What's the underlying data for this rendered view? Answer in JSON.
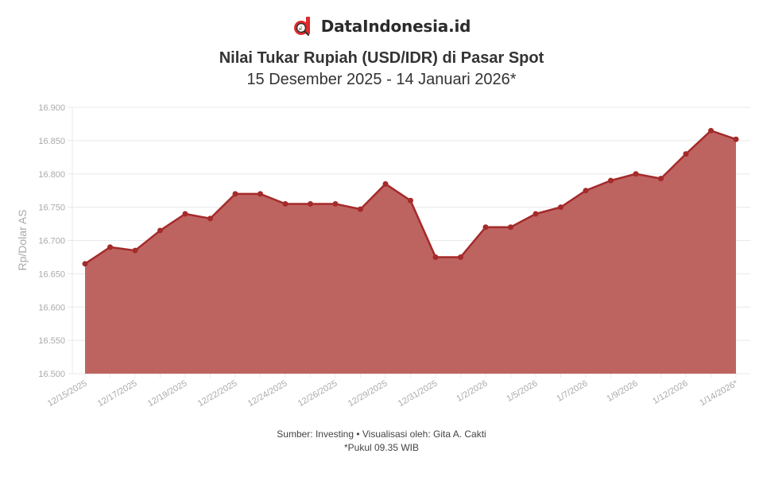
{
  "header": {
    "brand": "DataIndonesia.id",
    "logo_icon": "dataindonesia-logo-icon"
  },
  "chart_data": {
    "type": "area",
    "title": "Nilai Tukar Rupiah (USD/IDR) di Pasar Spot",
    "subtitle": "15 Desember 2025 - 14 Januari 2026*",
    "xlabel": "",
    "ylabel": "Rp/Dolar AS",
    "ylim": [
      16500,
      16900
    ],
    "yticks": [
      "16.500",
      "16.550",
      "16.600",
      "16.650",
      "16.700",
      "16.750",
      "16.800",
      "16.850",
      "16.900"
    ],
    "ytick_values": [
      16500,
      16550,
      16600,
      16650,
      16700,
      16750,
      16800,
      16850,
      16900
    ],
    "grid": true,
    "legend": "none",
    "x_tick_labels": [
      "12/15/2025",
      "12/17/2025",
      "12/19/2025",
      "12/22/2025",
      "12/24/2025",
      "12/26/2025",
      "12/29/2025",
      "12/31/2025",
      "1/2/2026",
      "1/5/2026",
      "1/7/2026",
      "1/9/2026",
      "1/12/2026",
      "1/14/2026*"
    ],
    "x": [
      "12/15/2025",
      "12/16/2025",
      "12/17/2025",
      "12/18/2025",
      "12/19/2025",
      "12/21/2025",
      "12/22/2025",
      "12/23/2025",
      "12/24/2025",
      "12/25/2025",
      "12/26/2025",
      "12/28/2025",
      "12/29/2025",
      "12/30/2025",
      "12/31/2025",
      "1/1/2026",
      "1/2/2026",
      "1/4/2026",
      "1/5/2026",
      "1/6/2026",
      "1/7/2026",
      "1/8/2026",
      "1/9/2026",
      "1/11/2026",
      "1/12/2026",
      "1/13/2026",
      "1/14/2026*"
    ],
    "series": [
      {
        "name": "USD/IDR",
        "color": "#a52a2a",
        "fill": "#bd6461",
        "values": [
          16665,
          16690,
          16685,
          16715,
          16740,
          16733,
          16770,
          16770,
          16755,
          16755,
          16755,
          16747,
          16785,
          16760,
          16675,
          16675,
          16720,
          16720,
          16740,
          16750,
          16775,
          16790,
          16800,
          16793,
          16830,
          16865,
          16852
        ]
      }
    ]
  },
  "footer": {
    "source": "Sumber: Investing • Visualisasi oleh: Gita A. Cakti",
    "note": "*Pukul 09.35 WIB"
  },
  "colors": {
    "line": "#a52a2a",
    "area": "#bd6461",
    "grid": "#e8e8e8",
    "axis_text": "#aaaaaa",
    "logo_red": "#e02a2a"
  }
}
